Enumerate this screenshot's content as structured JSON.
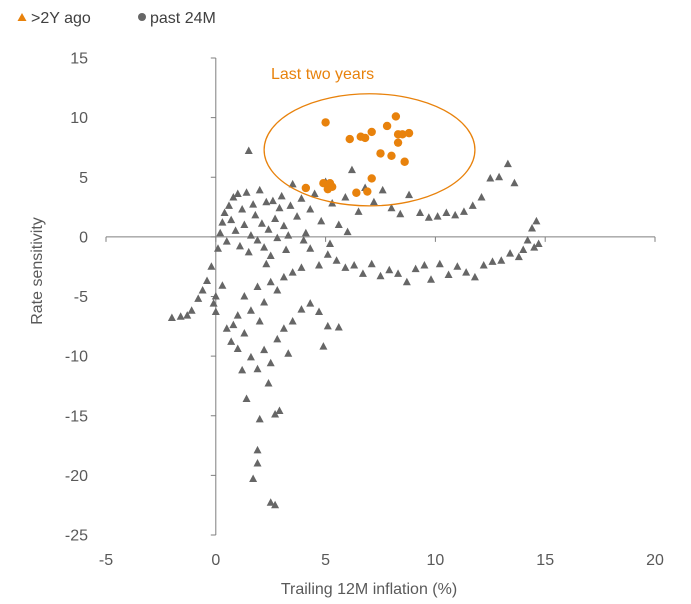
{
  "chart_data": {
    "type": "scatter",
    "title": "",
    "xlabel": "Trailing 12M inflation (%)",
    "ylabel": "Rate sensitivity",
    "xlim": [
      -5,
      20
    ],
    "ylim": [
      -25,
      15
    ],
    "xticks": [
      -5,
      0,
      5,
      10,
      15,
      20
    ],
    "yticks": [
      15,
      10,
      5,
      0,
      -5,
      -10,
      -15,
      -20,
      -25
    ],
    "grid": false,
    "legend_position": "top-left",
    "annotation": {
      "text": "Last two years",
      "color": "#E8820C",
      "ellipse_center": [
        7.0,
        7.3
      ],
      "ellipse_radii": [
        4.8,
        4.7
      ]
    },
    "series": [
      {
        "name": ">2Y ago",
        "marker": "triangle",
        "color": "#666666",
        "points": [
          [
            -2.0,
            -6.8
          ],
          [
            -1.6,
            -6.7
          ],
          [
            -1.3,
            -6.6
          ],
          [
            -1.1,
            -6.2
          ],
          [
            -0.8,
            -5.2
          ],
          [
            -0.6,
            -4.5
          ],
          [
            -0.4,
            -3.7
          ],
          [
            -0.2,
            -2.5
          ],
          [
            -0.1,
            -5.6
          ],
          [
            0.0,
            -5.0
          ],
          [
            0.0,
            -6.3
          ],
          [
            0.1,
            -1.0
          ],
          [
            0.2,
            0.3
          ],
          [
            0.3,
            1.2
          ],
          [
            0.4,
            2.0
          ],
          [
            0.5,
            -0.4
          ],
          [
            0.6,
            2.6
          ],
          [
            0.7,
            1.4
          ],
          [
            0.8,
            3.3
          ],
          [
            0.9,
            0.5
          ],
          [
            1.0,
            3.6
          ],
          [
            1.1,
            -0.8
          ],
          [
            1.2,
            2.3
          ],
          [
            1.3,
            1.0
          ],
          [
            1.4,
            3.7
          ],
          [
            1.5,
            -1.3
          ],
          [
            1.6,
            0.1
          ],
          [
            1.7,
            2.7
          ],
          [
            1.8,
            1.8
          ],
          [
            1.9,
            -0.3
          ],
          [
            2.0,
            3.9
          ],
          [
            2.1,
            1.1
          ],
          [
            2.2,
            -0.9
          ],
          [
            2.3,
            2.9
          ],
          [
            2.4,
            0.6
          ],
          [
            2.5,
            -1.6
          ],
          [
            2.6,
            3.0
          ],
          [
            2.7,
            1.5
          ],
          [
            2.8,
            -0.1
          ],
          [
            2.9,
            2.4
          ],
          [
            3.0,
            3.4
          ],
          [
            3.1,
            0.9
          ],
          [
            3.2,
            -1.1
          ],
          [
            3.4,
            2.6
          ],
          [
            3.5,
            4.4
          ],
          [
            3.7,
            1.7
          ],
          [
            3.9,
            3.2
          ],
          [
            4.1,
            0.3
          ],
          [
            4.3,
            2.3
          ],
          [
            4.5,
            3.6
          ],
          [
            4.8,
            1.3
          ],
          [
            5.0,
            4.6
          ],
          [
            5.3,
            2.8
          ],
          [
            5.6,
            1.0
          ],
          [
            5.9,
            3.3
          ],
          [
            6.2,
            5.6
          ],
          [
            6.5,
            2.1
          ],
          [
            6.8,
            4.1
          ],
          [
            7.2,
            2.9
          ],
          [
            7.6,
            3.9
          ],
          [
            8.0,
            2.4
          ],
          [
            8.4,
            1.9
          ],
          [
            8.8,
            3.5
          ],
          [
            9.3,
            2.0
          ],
          [
            9.7,
            1.6
          ],
          [
            10.1,
            1.7
          ],
          [
            10.5,
            2.0
          ],
          [
            10.9,
            1.8
          ],
          [
            11.3,
            2.1
          ],
          [
            11.7,
            2.6
          ],
          [
            12.1,
            3.3
          ],
          [
            12.5,
            4.9
          ],
          [
            12.9,
            5.0
          ],
          [
            13.3,
            6.1
          ],
          [
            13.6,
            4.5
          ],
          [
            13.8,
            -1.7
          ],
          [
            14.0,
            -1.1
          ],
          [
            14.2,
            -0.3
          ],
          [
            14.4,
            0.7
          ],
          [
            14.6,
            1.3
          ],
          [
            14.7,
            -0.6
          ],
          [
            14.5,
            -0.9
          ],
          [
            13.4,
            -1.4
          ],
          [
            13.0,
            -2.0
          ],
          [
            12.6,
            -2.1
          ],
          [
            12.2,
            -2.4
          ],
          [
            11.8,
            -3.4
          ],
          [
            11.4,
            -3.0
          ],
          [
            11.0,
            -2.5
          ],
          [
            10.6,
            -3.2
          ],
          [
            10.2,
            -2.3
          ],
          [
            9.8,
            -3.6
          ],
          [
            9.5,
            -2.4
          ],
          [
            9.1,
            -2.7
          ],
          [
            8.7,
            -3.8
          ],
          [
            8.3,
            -3.1
          ],
          [
            7.9,
            -2.8
          ],
          [
            7.5,
            -3.3
          ],
          [
            7.1,
            -2.3
          ],
          [
            6.7,
            -3.1
          ],
          [
            6.3,
            -2.4
          ],
          [
            5.9,
            -2.6
          ],
          [
            5.5,
            -2.0
          ],
          [
            5.1,
            -1.5
          ],
          [
            4.7,
            -2.4
          ],
          [
            4.3,
            -1.0
          ],
          [
            3.9,
            -2.6
          ],
          [
            3.5,
            -3.0
          ],
          [
            3.1,
            -3.4
          ],
          [
            2.8,
            -4.5
          ],
          [
            2.5,
            -3.8
          ],
          [
            2.2,
            -5.5
          ],
          [
            1.9,
            -4.2
          ],
          [
            1.6,
            -6.2
          ],
          [
            1.3,
            -5.0
          ],
          [
            1.0,
            -6.6
          ],
          [
            0.8,
            -7.4
          ],
          [
            0.5,
            -7.7
          ],
          [
            0.7,
            -8.8
          ],
          [
            1.0,
            -9.4
          ],
          [
            1.3,
            -8.1
          ],
          [
            1.6,
            -10.1
          ],
          [
            1.9,
            -11.1
          ],
          [
            2.2,
            -9.5
          ],
          [
            2.5,
            -10.6
          ],
          [
            2.8,
            -8.6
          ],
          [
            3.1,
            -7.7
          ],
          [
            3.5,
            -7.1
          ],
          [
            3.9,
            -6.1
          ],
          [
            4.3,
            -5.6
          ],
          [
            4.7,
            -6.3
          ],
          [
            5.1,
            -7.5
          ],
          [
            5.6,
            -7.6
          ],
          [
            4.9,
            -9.2
          ],
          [
            3.3,
            -9.8
          ],
          [
            2.4,
            -12.3
          ],
          [
            1.4,
            -13.6
          ],
          [
            2.0,
            -15.3
          ],
          [
            2.7,
            -14.9
          ],
          [
            2.9,
            -14.6
          ],
          [
            1.9,
            -17.9
          ],
          [
            1.9,
            -19.0
          ],
          [
            1.7,
            -20.3
          ],
          [
            2.5,
            -22.3
          ],
          [
            2.7,
            -22.5
          ],
          [
            1.5,
            7.2
          ],
          [
            0.3,
            -4.1
          ],
          [
            2.3,
            -2.3
          ],
          [
            2.0,
            -7.1
          ],
          [
            1.2,
            -11.2
          ],
          [
            3.3,
            0.1
          ],
          [
            4.0,
            -0.3
          ],
          [
            6.0,
            0.4
          ],
          [
            5.2,
            -0.6
          ]
        ]
      },
      {
        "name": "past 24M",
        "marker": "circle",
        "color": "#E8820C",
        "points": [
          [
            4.1,
            4.1
          ],
          [
            4.9,
            4.5
          ],
          [
            5.1,
            4.0
          ],
          [
            5.2,
            4.5
          ],
          [
            5.3,
            4.2
          ],
          [
            5.0,
            9.6
          ],
          [
            6.1,
            8.2
          ],
          [
            6.4,
            3.7
          ],
          [
            6.6,
            8.4
          ],
          [
            6.8,
            8.3
          ],
          [
            6.9,
            3.8
          ],
          [
            7.1,
            8.8
          ],
          [
            7.1,
            4.9
          ],
          [
            7.5,
            7.0
          ],
          [
            7.8,
            9.3
          ],
          [
            8.0,
            6.8
          ],
          [
            8.2,
            10.1
          ],
          [
            8.3,
            8.6
          ],
          [
            8.3,
            7.9
          ],
          [
            8.5,
            8.6
          ],
          [
            8.6,
            6.3
          ],
          [
            8.8,
            8.7
          ]
        ]
      }
    ]
  },
  "colors": {
    "orange": "#E8820C",
    "gray": "#666666",
    "axis": "#7f7f7f",
    "text": "#595959"
  }
}
